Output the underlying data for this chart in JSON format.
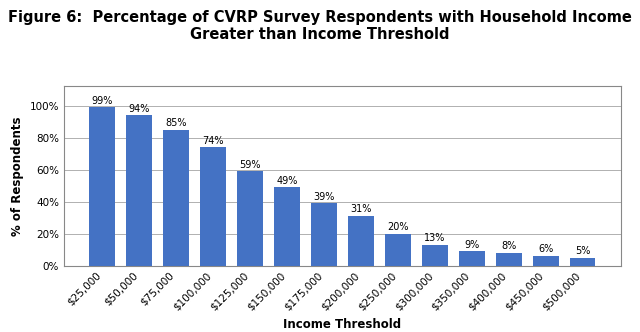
{
  "title_line1": "Figure 6:  Percentage of CVRP Survey Respondents with Household Income",
  "title_line2": "Greater than Income Threshold",
  "xlabel": "Income Threshold",
  "ylabel": "% of Respondents",
  "categories": [
    "$25,000",
    "$50,000",
    "$75,000",
    "$100,000",
    "$125,000",
    "$150,000",
    "$175,000",
    "$200,000",
    "$250,000",
    "$300,000",
    "$350,000",
    "$400,000",
    "$450,000",
    "$500,000"
  ],
  "values": [
    99,
    94,
    85,
    74,
    59,
    49,
    39,
    31,
    20,
    13,
    9,
    8,
    6,
    5
  ],
  "labels": [
    "99%",
    "94%",
    "85%",
    "74%",
    "59%",
    "49%",
    "39%",
    "31%",
    "20%",
    "13%",
    "9%",
    "8%",
    "6%",
    "5%"
  ],
  "bar_color": "#4472C4",
  "background_color": "#ffffff",
  "ylim": [
    0,
    112
  ],
  "yticks": [
    0,
    20,
    40,
    60,
    80,
    100
  ],
  "ytick_labels": [
    "0%",
    "20%",
    "40%",
    "60%",
    "80%",
    "100%"
  ],
  "grid_color": "#b0b0b0",
  "title_fontsize": 10.5,
  "label_fontsize": 7.0,
  "axis_label_fontsize": 8.5,
  "tick_fontsize": 7.5,
  "frame_color": "#888888"
}
